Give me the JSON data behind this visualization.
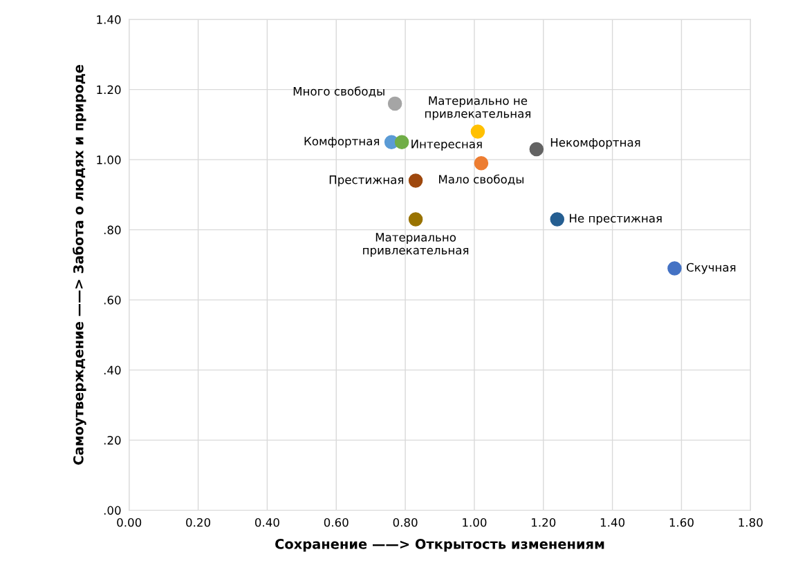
{
  "chart_data": {
    "type": "scatter",
    "xlabel": "Сохранение ——> Открытость изменениям",
    "ylabel": "Самоутверждение ——> Забота о людях и природе",
    "xlim": [
      0,
      1.8
    ],
    "xticks": [
      {
        "value": 0,
        "label": "0.00"
      },
      {
        "value": 0.2,
        "label": "0.20"
      },
      {
        "value": 0.4,
        "label": "0.40"
      },
      {
        "value": 0.6,
        "label": "0.60"
      },
      {
        "value": 0.8,
        "label": "0.80"
      },
      {
        "value": 1.0,
        "label": "1.00"
      },
      {
        "value": 1.2,
        "label": "1.20"
      },
      {
        "value": 1.4,
        "label": "1.40"
      },
      {
        "value": 1.6,
        "label": "1.60"
      },
      {
        "value": 1.8,
        "label": "1.80"
      }
    ],
    "ylim": [
      0,
      1.4
    ],
    "yticks": [
      {
        "value": 0,
        "label": ".00"
      },
      {
        "value": 0.2,
        "label": ".20"
      },
      {
        "value": 0.4,
        "label": ".40"
      },
      {
        "value": 0.6,
        "label": ".60"
      },
      {
        "value": 0.8,
        "label": ".80"
      },
      {
        "value": 1.0,
        "label": "1.00"
      },
      {
        "value": 1.2,
        "label": "1.20"
      },
      {
        "value": 1.4,
        "label": "1.40"
      }
    ],
    "grid": true,
    "legend": false,
    "marker": "circle",
    "series": [
      {
        "name": "Много свободы",
        "color": "#a5a5a5",
        "x": [
          0.77
        ],
        "values": [
          1.16
        ]
      },
      {
        "name": "Материально не\nпривлекательная",
        "color": "#ffc000",
        "x": [
          1.01
        ],
        "values": [
          1.08
        ]
      },
      {
        "name": "Комфортная",
        "color": "#5b9bd5",
        "x": [
          0.76
        ],
        "values": [
          1.05
        ]
      },
      {
        "name": "Интересная",
        "color": "#70ad47",
        "x": [
          0.79
        ],
        "values": [
          1.05
        ]
      },
      {
        "name": "Некомфортная",
        "color": "#636363",
        "x": [
          1.18
        ],
        "values": [
          1.03
        ]
      },
      {
        "name": "Мало свободы",
        "color": "#ed7d31",
        "x": [
          1.02
        ],
        "values": [
          0.99
        ]
      },
      {
        "name": "Престижная",
        "color": "#9e480e",
        "x": [
          0.83
        ],
        "values": [
          0.94
        ]
      },
      {
        "name": "Материально\nпривлекательная",
        "color": "#997300",
        "x": [
          0.83
        ],
        "values": [
          0.83
        ]
      },
      {
        "name": "Не престижная",
        "color": "#255e91",
        "x": [
          1.24
        ],
        "values": [
          0.83
        ]
      },
      {
        "name": "Скучная",
        "color": "#4472c4",
        "x": [
          1.58
        ],
        "values": [
          0.69
        ]
      }
    ]
  }
}
